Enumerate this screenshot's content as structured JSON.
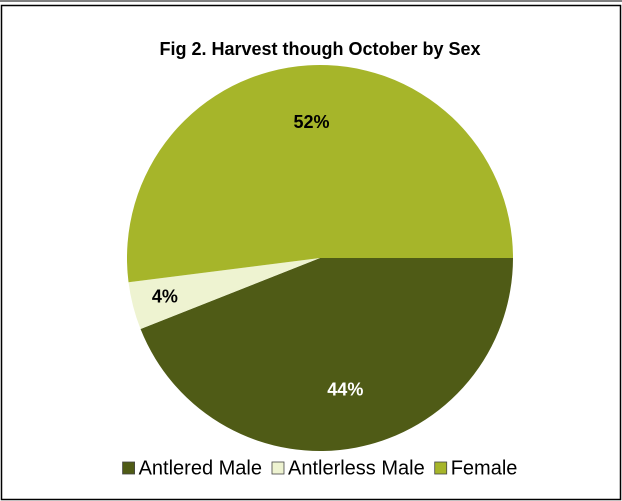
{
  "chart_data": {
    "type": "pie",
    "title": "Fig 2. Harvest though October by Sex",
    "categories": [
      "Antlered Male",
      "Antlerless Male",
      "Female"
    ],
    "values": [
      44,
      4,
      52
    ],
    "value_labels": [
      "44%",
      "4%",
      "52%"
    ],
    "colors": [
      "#4f5b16",
      "#eef3d1",
      "#a6b52a"
    ],
    "legend": "bottom"
  }
}
